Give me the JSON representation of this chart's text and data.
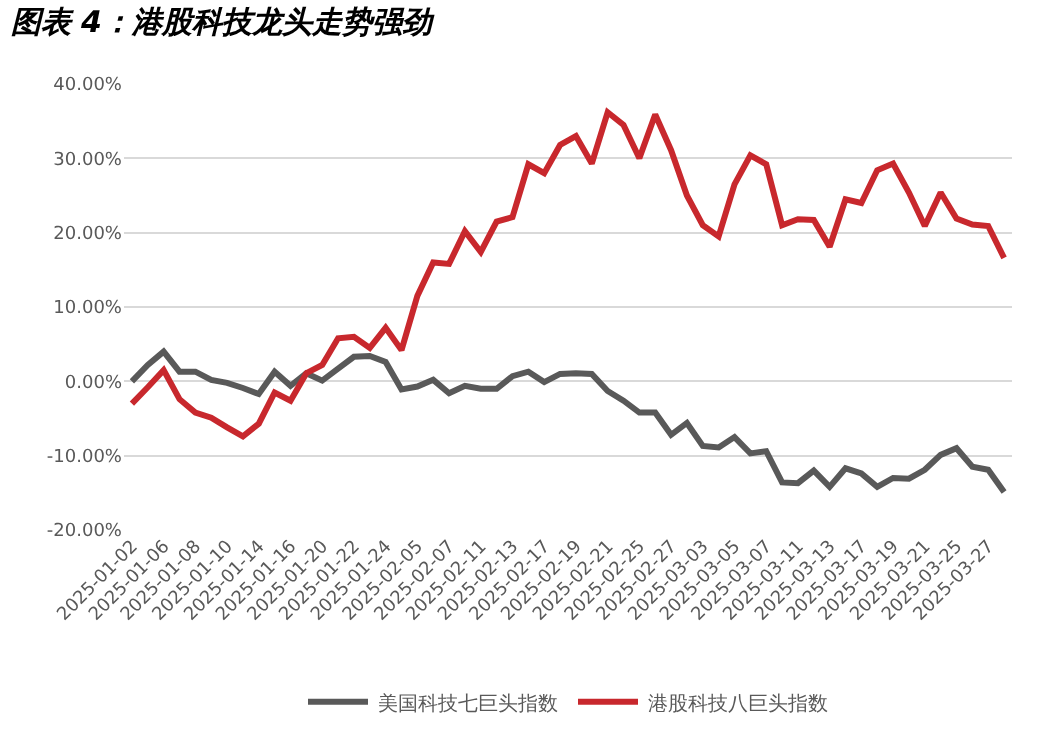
{
  "chart_data": {
    "type": "line",
    "title": "图表 4：港股科技龙头走势强劲",
    "categories": [
      "2025-01-02",
      null,
      "2025-01-06",
      null,
      "2025-01-08",
      null,
      "2025-01-10",
      null,
      "2025-01-14",
      null,
      "2025-01-16",
      null,
      "2025-01-20",
      null,
      "2025-01-22",
      null,
      "2025-01-24",
      null,
      "2025-02-05",
      null,
      "2025-02-07",
      null,
      "2025-02-11",
      null,
      "2025-02-13",
      null,
      "2025-02-17",
      null,
      "2025-02-19",
      null,
      "2025-02-21",
      null,
      "2025-02-25",
      null,
      "2025-02-27",
      null,
      "2025-03-03",
      null,
      "2025-03-05",
      null,
      "2025-03-07",
      null,
      "2025-03-11",
      null,
      "2025-03-13",
      null,
      "2025-03-17",
      null,
      "2025-03-19",
      null,
      "2025-03-21",
      null,
      "2025-03-25",
      null,
      "2025-03-27",
      null
    ],
    "series": [
      {
        "name": "美国科技七巨头指数",
        "color": "#595959",
        "values": [
          0,
          2.2,
          4.0,
          1.3,
          1.3,
          0.2,
          -0.2,
          -0.9,
          -1.7,
          1.3,
          -0.6,
          1.1,
          0.1,
          1.7,
          3.3,
          3.4,
          2.6,
          -1.1,
          -0.7,
          0.2,
          -1.6,
          -0.6,
          -1.0,
          -1.0,
          0.7,
          1.3,
          -0.1,
          1.0,
          1.1,
          1.0,
          -1.3,
          -2.6,
          -4.2,
          -4.2,
          -7.2,
          -5.6,
          -8.7,
          -8.9,
          -7.5,
          -9.7,
          -9.4,
          -13.6,
          -13.7,
          -12.0,
          -14.2,
          -11.7,
          -12.4,
          -14.2,
          -13.0,
          -13.1,
          -11.9,
          -9.9,
          -9.0,
          -11.5,
          -11.9,
          -14.9
        ]
      },
      {
        "name": "港股科技八巨头指数",
        "color": "#c8282d",
        "values": [
          -3.0,
          -0.8,
          1.5,
          -2.4,
          -4.2,
          -4.9,
          -6.2,
          -7.4,
          -5.7,
          -1.5,
          -2.6,
          1.1,
          2.2,
          5.8,
          6.0,
          4.5,
          7.2,
          4.2,
          11.5,
          16.0,
          15.8,
          20.2,
          17.4,
          21.5,
          22.1,
          29.2,
          28.0,
          31.8,
          33.0,
          29.3,
          36.2,
          34.5,
          30.0,
          35.9,
          31.1,
          25.0,
          21.0,
          19.5,
          26.5,
          30.4,
          29.2,
          21.0,
          21.8,
          21.7,
          18.1,
          24.5,
          24.0,
          28.4,
          29.3,
          25.4,
          20.9,
          25.4,
          21.9,
          21.1,
          20.9,
          16.6
        ]
      }
    ],
    "ylim": [
      -20,
      40
    ],
    "yticks": [
      {
        "value": -20,
        "label": "-20.00%"
      },
      {
        "value": -10,
        "label": "-10.00%"
      },
      {
        "value": 0,
        "label": "0.00%"
      },
      {
        "value": 10,
        "label": "10.00%"
      },
      {
        "value": 20,
        "label": "20.00%"
      },
      {
        "value": 30,
        "label": "30.00%"
      },
      {
        "value": 40,
        "label": "40.00%"
      }
    ],
    "grid": "y",
    "legend": "bottom",
    "marker": "none",
    "line_style": "solid"
  }
}
